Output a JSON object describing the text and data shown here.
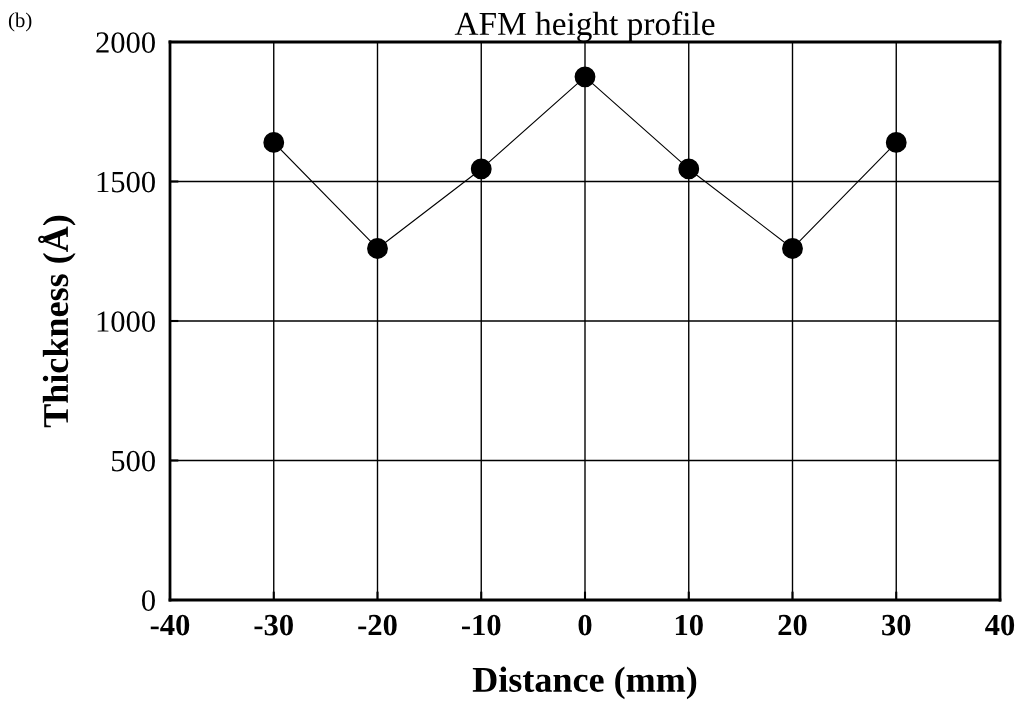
{
  "chart_data": {
    "type": "line",
    "title": "AFM height profile",
    "xlabel": "Distance (mm)",
    "ylabel": "Thickness (Å)",
    "annotations": [
      "(b)"
    ],
    "x": [
      -30,
      -20,
      -10,
      0,
      10,
      20,
      30
    ],
    "series": [
      {
        "color": "#000000",
        "values": [
          1640,
          1260,
          1545,
          1875,
          1545,
          1260,
          1640
        ]
      }
    ],
    "xlim": [
      -40,
      40
    ],
    "xticks": [
      -40,
      -30,
      -20,
      -10,
      0,
      10,
      20,
      30,
      40
    ],
    "ylim": [
      0,
      2000
    ],
    "yticks": [
      0,
      500,
      1000,
      1500,
      2000
    ],
    "grid": true,
    "marker": "circle",
    "line_style": "solid"
  }
}
